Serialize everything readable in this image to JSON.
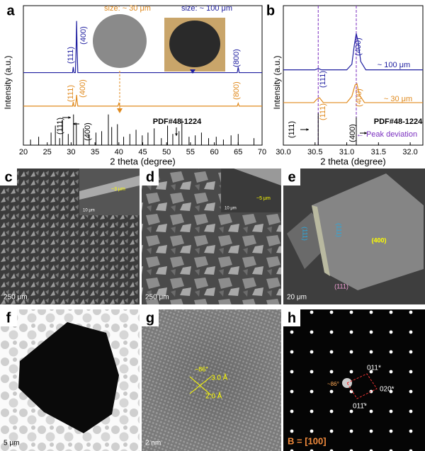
{
  "chart_data": [
    {
      "type": "line",
      "panel_label": "a",
      "xlabel": "2 theta (degree)",
      "ylabel": "Intensity (a.u.)",
      "xlim": [
        20,
        70
      ],
      "xticks": [
        20,
        25,
        30,
        35,
        40,
        45,
        50,
        55,
        60,
        65,
        70
      ],
      "ylim": [
        0,
        100
      ],
      "series": [
        {
          "style": "line",
          "color": "#1f1fa0",
          "x": [
            20,
            30.3,
            30.45,
            30.6,
            30.9,
            31.05,
            31.15,
            31.25,
            31.4,
            64.8,
            65.0,
            65.2,
            70
          ],
          "values": [
            52,
            52,
            56,
            52,
            52,
            70,
            89,
            70,
            52,
            52,
            56,
            52,
            52
          ]
        },
        {
          "style": "line",
          "color": "#e08a1e",
          "x": [
            20,
            30.3,
            30.45,
            30.6,
            30.9,
            31.05,
            31.15,
            31.25,
            31.4,
            39.8,
            40.0,
            40.2,
            64.8,
            65.0,
            65.2,
            70
          ],
          "values": [
            28,
            28,
            31,
            28,
            28,
            32,
            36,
            32,
            28,
            28,
            30,
            28,
            28,
            30,
            28,
            28
          ]
        },
        {
          "style": "stem",
          "color": "#000000",
          "x": [
            21.5,
            23.2,
            25.8,
            26.7,
            27.6,
            28.2,
            29.4,
            30.5,
            31.1,
            32.6,
            33.8,
            35.2,
            36.4,
            37.8,
            38.5,
            39.7,
            41.0,
            42.3,
            43.6,
            44.9,
            46.1,
            47.4,
            48.9,
            50.2,
            51.3,
            52.6,
            53.2,
            54.7,
            56.0,
            57.3,
            58.8,
            60.4,
            61.9,
            63.5,
            65.0,
            68.3
          ],
          "values": [
            4,
            6,
            9,
            14,
            5,
            18,
            8,
            22,
            16,
            12,
            7,
            9,
            10,
            22,
            13,
            15,
            6,
            8,
            11,
            7,
            9,
            12,
            5,
            14,
            8,
            10,
            19,
            6,
            7,
            9,
            5,
            6,
            4,
            7,
            8,
            5
          ]
        }
      ],
      "annotations": [
        "size: ~ 30 μm",
        "size: ~ 100 μm",
        "(111)",
        "(400)",
        "(800)",
        "(111)",
        "(400)",
        "(800)",
        "(111)",
        "(400)",
        "PDF#48-1224"
      ]
    },
    {
      "type": "line",
      "panel_label": "b",
      "xlabel": "2 theta (degree)",
      "ylabel": "Intensity (a.u.)",
      "xlim": [
        30.0,
        32.2
      ],
      "xticks": [
        {
          "value": 30,
          "label": "30.0"
        },
        {
          "value": 30.5,
          "label": "30.5"
        },
        {
          "value": 31,
          "label": "31.0"
        },
        {
          "value": 31.5,
          "label": "31.5"
        },
        {
          "value": 32,
          "label": "32.0"
        }
      ],
      "ylim": [
        0,
        100
      ],
      "series": [
        {
          "style": "line",
          "color": "#1f1fa0",
          "x": [
            30.0,
            30.5,
            30.55,
            30.6,
            31.0,
            31.08,
            31.12,
            31.15,
            31.18,
            31.22,
            31.3,
            32.2
          ],
          "values": [
            54,
            54,
            55,
            54,
            54,
            58,
            72,
            80,
            74,
            60,
            54,
            54
          ]
        },
        {
          "style": "line",
          "color": "#e08a1e",
          "x": [
            30.0,
            30.48,
            30.53,
            30.57,
            30.63,
            31.0,
            31.08,
            31.13,
            31.16,
            31.2,
            31.28,
            32.2
          ],
          "values": [
            30.5,
            30.5,
            33,
            34,
            30.5,
            30.5,
            35,
            43,
            44,
            36,
            30.5,
            30.5
          ]
        },
        {
          "style": "stem",
          "color": "#000000",
          "x": [
            30.55,
            31.15
          ],
          "values": [
            23,
            20
          ]
        }
      ],
      "vlines": [
        30.55,
        31.15
      ],
      "vline_color": "#7a2fbf",
      "annotations": [
        "(111)",
        "(400)",
        "~ 100 μm",
        "(111)",
        "(400)",
        "~ 30 μm",
        "(111)",
        "(400)",
        "PDF#48-1224",
        "← Peak deviation"
      ]
    }
  ],
  "micrographs": [
    {
      "label": "c",
      "scale_bar": "250 μm",
      "inset_scale_bar": "10 μm",
      "inset_note": "~3 μm"
    },
    {
      "label": "d",
      "scale_bar": "250 μm",
      "inset_scale_bar": "10 μm",
      "inset_note": "~5 μm"
    },
    {
      "label": "e",
      "scale_bar": "20 μm",
      "facets": [
        "(111)",
        "(111)",
        "(400)",
        "(111)"
      ]
    },
    {
      "label": "f",
      "scale_bar": "5 μm"
    },
    {
      "label": "g",
      "scale_bar": "2 nm",
      "notes": [
        "~86°",
        "3.0 Å",
        "2.0 Å"
      ]
    },
    {
      "label": "h",
      "notes": [
        "~86°",
        "011*",
        "020*",
        "011̄*"
      ],
      "zone_axis": "B = [100]"
    }
  ]
}
